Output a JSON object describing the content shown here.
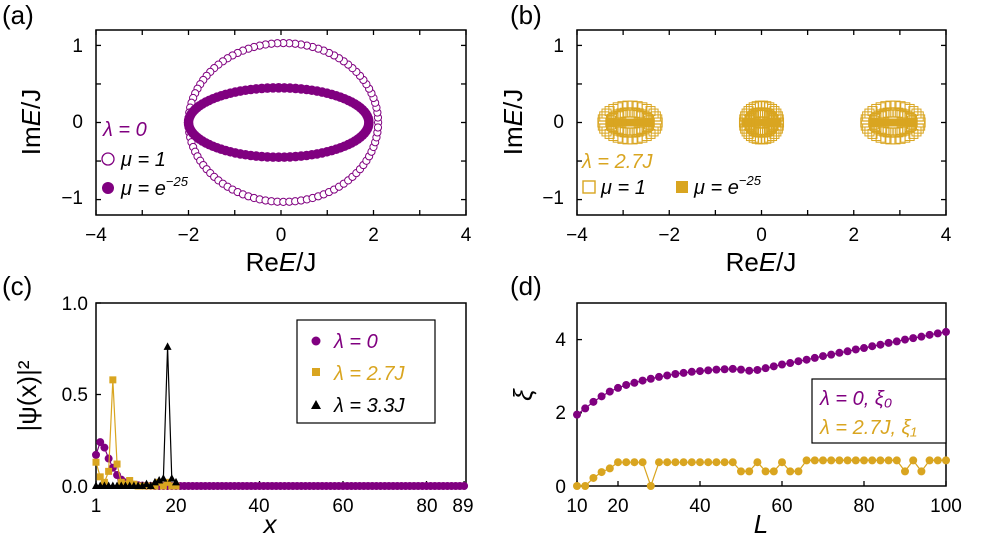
{
  "colors": {
    "purple": "#800080",
    "gold": "#d9a520",
    "black": "#000000"
  },
  "panels": {
    "a": {
      "label": "(a)",
      "xlabel_pre": "Re",
      "xlabel_var": "E",
      "xlabel_post": "/J",
      "ylabel_pre": "Im",
      "ylabel_var": "E",
      "ylabel_post": "/J",
      "xticks": [
        "−4",
        "−2",
        "0",
        "2",
        "4"
      ],
      "yticks": [
        "1",
        "0",
        "−1"
      ],
      "legend": {
        "lambda": "λ = 0",
        "mu1": "μ = 1",
        "mu2": "μ = e",
        "mu2_exp": "−25"
      }
    },
    "b": {
      "label": "(b)",
      "xlabel_pre": "Re",
      "xlabel_var": "E",
      "xlabel_post": "/J",
      "ylabel_pre": "Im",
      "ylabel_var": "E",
      "ylabel_post": "/J",
      "xticks": [
        "−4",
        "−2",
        "0",
        "2",
        "4"
      ],
      "yticks": [
        "1",
        "0",
        "−1"
      ],
      "legend": {
        "lambda": "λ = 2.7J",
        "mu1": "μ = 1",
        "mu2": "μ = e",
        "mu2_exp": "−25"
      }
    },
    "c": {
      "label": "(c)",
      "xlabel": "x",
      "ylabel": "|ψ(x)|²",
      "xticks": [
        "1",
        "20",
        "40",
        "60",
        "80",
        "89"
      ],
      "yticks": [
        "1.0",
        "0.5",
        "0.0"
      ],
      "legend": [
        "λ = 0",
        "λ = 2.7J",
        "λ = 3.3J"
      ]
    },
    "d": {
      "label": "(d)",
      "xlabel": "L",
      "ylabel": "ξ",
      "xticks": [
        "10",
        "20",
        "40",
        "60",
        "80",
        "100"
      ],
      "yticks": [
        "4",
        "2",
        "0"
      ],
      "legend": [
        "λ = 0, ξ₀",
        "λ = 2.7J, ξ₁"
      ]
    }
  },
  "chart_data": [
    {
      "panel": "a",
      "type": "scatter",
      "xlabel": "ReE/J",
      "ylabel": "ImE/J",
      "xlim": [
        -4,
        4
      ],
      "ylim": [
        -1.2,
        1.2
      ],
      "series": [
        {
          "name": "μ = 1",
          "shape": "ellipse",
          "center": [
            0.05,
            0.0
          ],
          "rx": 2.05,
          "ry": 1.03,
          "points": 100,
          "marker": "open-circle",
          "color": "#800080"
        },
        {
          "name": "μ = e^-25",
          "shape": "ellipse",
          "center": [
            -0.05,
            0.0
          ],
          "rx": 1.95,
          "ry": 0.45,
          "points": 100,
          "marker": "filled-circle",
          "color": "#800080"
        }
      ]
    },
    {
      "panel": "b",
      "type": "scatter",
      "xlabel": "ReE/J",
      "ylabel": "ImE/J",
      "xlim": [
        -4,
        4
      ],
      "ylim": [
        -1.2,
        1.2
      ],
      "series": [
        {
          "name": "μ = 1",
          "marker": "open-square",
          "color": "#d9a520",
          "clusters": [
            {
              "center": -2.85,
              "rx": 0.6,
              "ry": 0.22
            },
            {
              "center": 0.0,
              "rx": 0.38,
              "ry": 0.22
            },
            {
              "center": 2.85,
              "rx": 0.6,
              "ry": 0.22
            }
          ]
        },
        {
          "name": "μ = e^-25",
          "marker": "filled-square",
          "color": "#d9a520",
          "segments": [
            [
              -3.3,
              -2.4
            ],
            [
              -0.35,
              0.35
            ],
            [
              2.4,
              3.3
            ]
          ],
          "y": 0.0
        }
      ]
    },
    {
      "panel": "c",
      "type": "line",
      "xlabel": "x",
      "ylabel": "|ψ(x)|²",
      "xlim": [
        1,
        89
      ],
      "ylim": [
        0,
        1.0
      ],
      "series": [
        {
          "name": "λ = 0",
          "color": "#800080",
          "marker": "circle",
          "x": [
            1,
            2,
            3,
            4,
            5,
            6,
            7,
            8,
            9,
            10,
            11,
            12,
            13,
            14,
            15,
            16,
            17,
            18,
            19,
            20
          ],
          "y": [
            0.17,
            0.24,
            0.21,
            0.15,
            0.1,
            0.06,
            0.035,
            0.02,
            0.012,
            0.007,
            0.004,
            0.002,
            0.001,
            0.001,
            0,
            0,
            0,
            0,
            0,
            0
          ]
        },
        {
          "name": "λ = 2.7J",
          "color": "#d9a520",
          "marker": "square",
          "x": [
            1,
            2,
            3,
            4,
            5,
            6,
            7,
            8,
            9,
            10,
            11,
            12,
            13,
            14,
            15,
            16,
            17,
            18,
            19,
            20
          ],
          "y": [
            0.13,
            0.05,
            0.02,
            0.08,
            0.58,
            0.12,
            0.02,
            0.01,
            0.03,
            0.01,
            0.0,
            0.0,
            0.0,
            0.0,
            0.0,
            0.02,
            0.0,
            0.02,
            0.0,
            0.0
          ]
        },
        {
          "name": "λ = 3.3J",
          "color": "#000000",
          "marker": "triangle",
          "x": [
            1,
            2,
            3,
            4,
            5,
            6,
            7,
            8,
            9,
            10,
            11,
            12,
            13,
            14,
            15,
            16,
            17,
            18,
            19,
            20
          ],
          "y": [
            0,
            0,
            0,
            0,
            0,
            0,
            0,
            0,
            0,
            0,
            0,
            0,
            0.01,
            0,
            0.02,
            0.03,
            0.04,
            0.76,
            0.04,
            0.02
          ]
        }
      ]
    },
    {
      "panel": "d",
      "type": "line",
      "xlabel": "L",
      "ylabel": "ξ",
      "xlim": [
        10,
        100
      ],
      "ylim": [
        0,
        5
      ],
      "series": [
        {
          "name": "λ = 0, ξ0",
          "color": "#800080",
          "marker": "circle",
          "x": [
            10,
            12,
            14,
            16,
            18,
            20,
            22,
            24,
            26,
            28,
            30,
            32,
            34,
            36,
            38,
            40,
            42,
            44,
            46,
            48,
            50,
            52,
            54,
            56,
            58,
            60,
            62,
            64,
            66,
            68,
            70,
            72,
            74,
            76,
            78,
            80,
            82,
            84,
            86,
            88,
            90,
            92,
            94,
            96,
            98,
            100
          ],
          "y": [
            1.95,
            2.12,
            2.3,
            2.45,
            2.58,
            2.68,
            2.76,
            2.82,
            2.88,
            2.93,
            2.98,
            3.02,
            3.06,
            3.09,
            3.12,
            3.14,
            3.16,
            3.18,
            3.19,
            3.2,
            3.18,
            3.15,
            3.17,
            3.22,
            3.27,
            3.32,
            3.36,
            3.41,
            3.45,
            3.5,
            3.55,
            3.59,
            3.64,
            3.68,
            3.73,
            3.77,
            3.82,
            3.86,
            3.91,
            3.95,
            4.0,
            4.04,
            4.08,
            4.13,
            4.17,
            4.21
          ]
        },
        {
          "name": "λ = 2.7J, ξ1",
          "color": "#d9a520",
          "marker": "circle",
          "x": [
            10,
            12,
            14,
            16,
            18,
            20,
            22,
            24,
            26,
            28,
            30,
            32,
            34,
            36,
            38,
            40,
            42,
            44,
            46,
            48,
            50,
            52,
            54,
            56,
            58,
            60,
            62,
            64,
            66,
            68,
            70,
            72,
            74,
            76,
            78,
            80,
            82,
            84,
            86,
            88,
            90,
            92,
            94,
            96,
            98,
            100
          ],
          "y": [
            0.0,
            0.0,
            0.22,
            0.38,
            0.48,
            0.65,
            0.65,
            0.65,
            0.65,
            0.0,
            0.65,
            0.65,
            0.65,
            0.65,
            0.65,
            0.65,
            0.65,
            0.65,
            0.65,
            0.65,
            0.4,
            0.4,
            0.65,
            0.4,
            0.4,
            0.65,
            0.4,
            0.4,
            0.7,
            0.7,
            0.7,
            0.7,
            0.7,
            0.7,
            0.7,
            0.7,
            0.7,
            0.7,
            0.7,
            0.7,
            0.4,
            0.7,
            0.4,
            0.7,
            0.7,
            0.7
          ]
        }
      ]
    }
  ]
}
